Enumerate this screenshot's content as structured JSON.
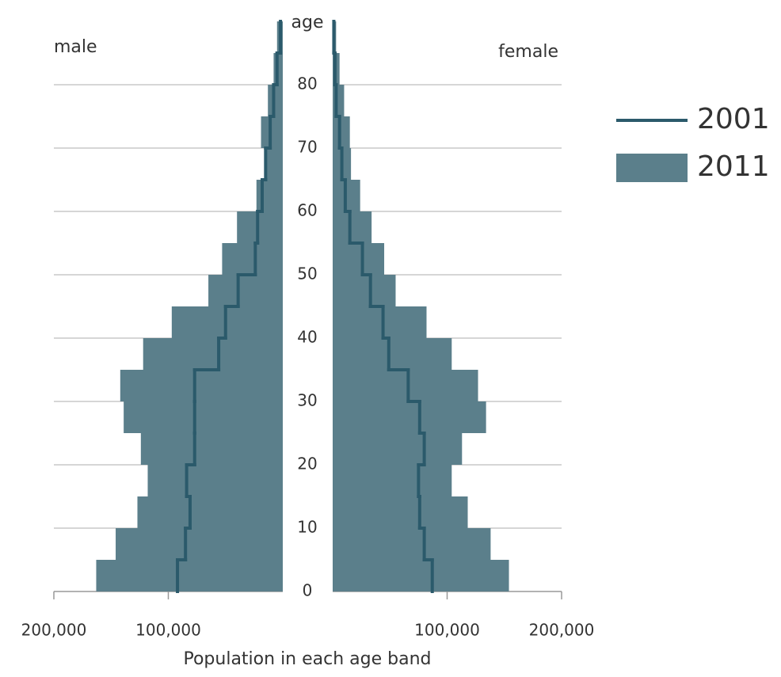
{
  "chart_data": {
    "type": "population-pyramid",
    "xlabel": "Population in each age band",
    "ylabel": "age",
    "groups": [
      "male",
      "female"
    ],
    "bins": [
      0,
      5,
      10,
      15,
      20,
      25,
      30,
      35,
      40,
      45,
      50,
      55,
      60,
      65,
      70,
      75,
      80,
      85,
      90
    ],
    "ylim": [
      0,
      90
    ],
    "yticks": [
      0,
      10,
      20,
      30,
      40,
      50,
      60,
      70,
      80
    ],
    "xlim": [
      0,
      200000
    ],
    "xticks": [
      {
        "value": 100000,
        "label": "100,000"
      },
      {
        "value": 200000,
        "label": "200,000"
      }
    ],
    "grid": true,
    "series": [
      {
        "name": "2011",
        "style": "bar",
        "color": "#5b7f8b",
        "values": [
          [
            163000,
            146000,
            127000,
            118000,
            124000,
            139000,
            142000,
            122000,
            97000,
            65000,
            53000,
            40000,
            23000,
            16000,
            19000,
            13000,
            8000,
            5000
          ],
          [
            154000,
            138000,
            118000,
            104000,
            113000,
            134000,
            127000,
            104000,
            82000,
            55000,
            45000,
            34000,
            24000,
            16000,
            15000,
            10000,
            6000,
            3000
          ]
        ]
      },
      {
        "name": "2001",
        "style": "line",
        "color": "#2b5a6b",
        "values": [
          [
            92000,
            85000,
            81000,
            84000,
            77000,
            77000,
            77000,
            56000,
            50000,
            39000,
            24000,
            22000,
            18000,
            15000,
            11000,
            8000,
            5000,
            2000
          ],
          [
            87000,
            80000,
            76000,
            75000,
            80000,
            76000,
            66000,
            49000,
            44000,
            33000,
            26000,
            15000,
            11000,
            8000,
            6000,
            3000,
            2000,
            1000
          ]
        ]
      }
    ],
    "legend": "right"
  }
}
